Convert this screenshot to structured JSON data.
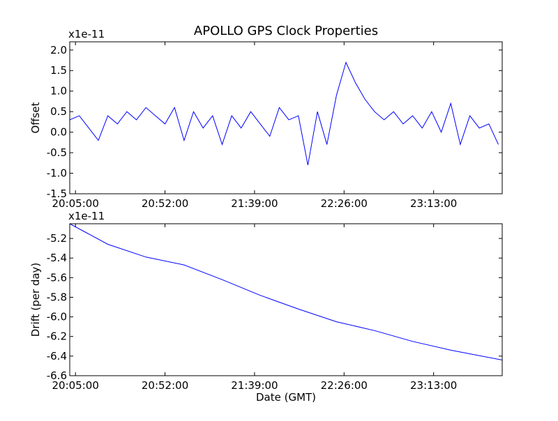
{
  "figure": {
    "title": "APOLLO GPS Clock Properties",
    "colors": {
      "line": "#0000ff",
      "axes": "#000000",
      "background": "#ffffff"
    }
  },
  "chart_data": [
    {
      "type": "line",
      "title": "APOLLO GPS Clock Properties",
      "xlabel": "",
      "ylabel": "Offset",
      "y_offset_text": "x1e-11",
      "xlim": [
        "20:02:00",
        "23:49:00"
      ],
      "ylim": [
        -1.5,
        2.2
      ],
      "x_ticks": [
        "20:05:00",
        "20:52:00",
        "21:39:00",
        "22:26:00",
        "23:13:00"
      ],
      "y_ticks": [
        "-1.5",
        "-1.0",
        "-0.5",
        "0.0",
        "0.5",
        "1.0",
        "1.5",
        "2.0"
      ],
      "grid": false,
      "series": [
        {
          "x": [
            "20:02:00",
            "20:07:00",
            "20:12:00",
            "20:17:00",
            "20:22:00",
            "20:27:00",
            "20:32:00",
            "20:37:00",
            "20:42:00",
            "20:47:00",
            "20:52:00",
            "20:57:00",
            "21:02:00",
            "21:07:00",
            "21:12:00",
            "21:17:00",
            "21:22:00",
            "21:27:00",
            "21:32:00",
            "21:37:00",
            "21:42:00",
            "21:47:00",
            "21:52:00",
            "21:57:00",
            "22:02:00",
            "22:07:00",
            "22:12:00",
            "22:17:00",
            "22:22:00",
            "22:27:00",
            "22:32:00",
            "22:37:00",
            "22:42:00",
            "22:47:00",
            "22:52:00",
            "22:57:00",
            "23:02:00",
            "23:07:00",
            "23:12:00",
            "23:17:00",
            "23:22:00",
            "23:27:00",
            "23:32:00",
            "23:37:00",
            "23:42:00",
            "23:47:00"
          ],
          "values": [
            0.3,
            0.4,
            0.1,
            -0.2,
            0.4,
            0.2,
            0.5,
            0.3,
            0.6,
            0.4,
            0.2,
            0.6,
            -0.2,
            0.5,
            0.1,
            0.4,
            -0.3,
            0.4,
            0.1,
            0.5,
            0.2,
            -0.1,
            0.6,
            0.3,
            0.4,
            -0.8,
            0.5,
            -0.3,
            0.9,
            1.7,
            1.2,
            0.8,
            0.5,
            0.3,
            0.5,
            0.2,
            0.4,
            0.1,
            0.5,
            0.0,
            0.7,
            -0.3,
            0.4,
            0.1,
            0.2,
            -0.3
          ]
        }
      ]
    },
    {
      "type": "line",
      "title": "",
      "xlabel": "Date (GMT)",
      "ylabel": "Drift (per day)",
      "y_offset_text": "x1e-11",
      "xlim": [
        "20:02:00",
        "23:49:00"
      ],
      "ylim": [
        -6.6,
        -5.05
      ],
      "x_ticks": [
        "20:05:00",
        "20:52:00",
        "21:39:00",
        "22:26:00",
        "23:13:00"
      ],
      "y_ticks": [
        "-6.6",
        "-6.4",
        "-6.2",
        "-6.0",
        "-5.8",
        "-5.6",
        "-5.4",
        "-5.2"
      ],
      "grid": false,
      "series": [
        {
          "x": [
            "20:02:00",
            "20:22:00",
            "20:42:00",
            "21:02:00",
            "21:22:00",
            "21:42:00",
            "22:02:00",
            "22:22:00",
            "22:42:00",
            "23:02:00",
            "23:22:00",
            "23:49:00"
          ],
          "values": [
            -5.05,
            -5.26,
            -5.39,
            -5.47,
            -5.62,
            -5.78,
            -5.92,
            -6.05,
            -6.14,
            -6.25,
            -6.34,
            -6.44
          ]
        }
      ]
    }
  ]
}
